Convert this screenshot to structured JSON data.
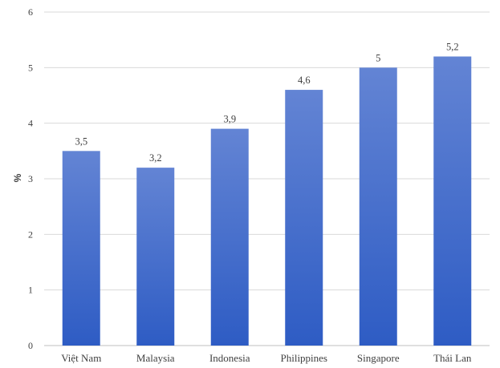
{
  "chart_data": {
    "type": "bar",
    "categories": [
      "Việt Nam",
      "Malaysia",
      "Indonesia",
      "Philippines",
      "Singapore",
      "Thái Lan"
    ],
    "values": [
      3.5,
      3.2,
      3.9,
      4.6,
      5,
      5.2
    ],
    "data_labels": [
      "3,5",
      "3,2",
      "3,9",
      "4,6",
      "5",
      "5,2"
    ],
    "ylabel": "%",
    "ylim": [
      0,
      6
    ],
    "yticks": [
      "0",
      "1",
      "2",
      "3",
      "4",
      "5",
      "6"
    ],
    "grid": true,
    "bar_color_top": "#6384d4",
    "bar_color_bottom": "#2e5cc4"
  }
}
